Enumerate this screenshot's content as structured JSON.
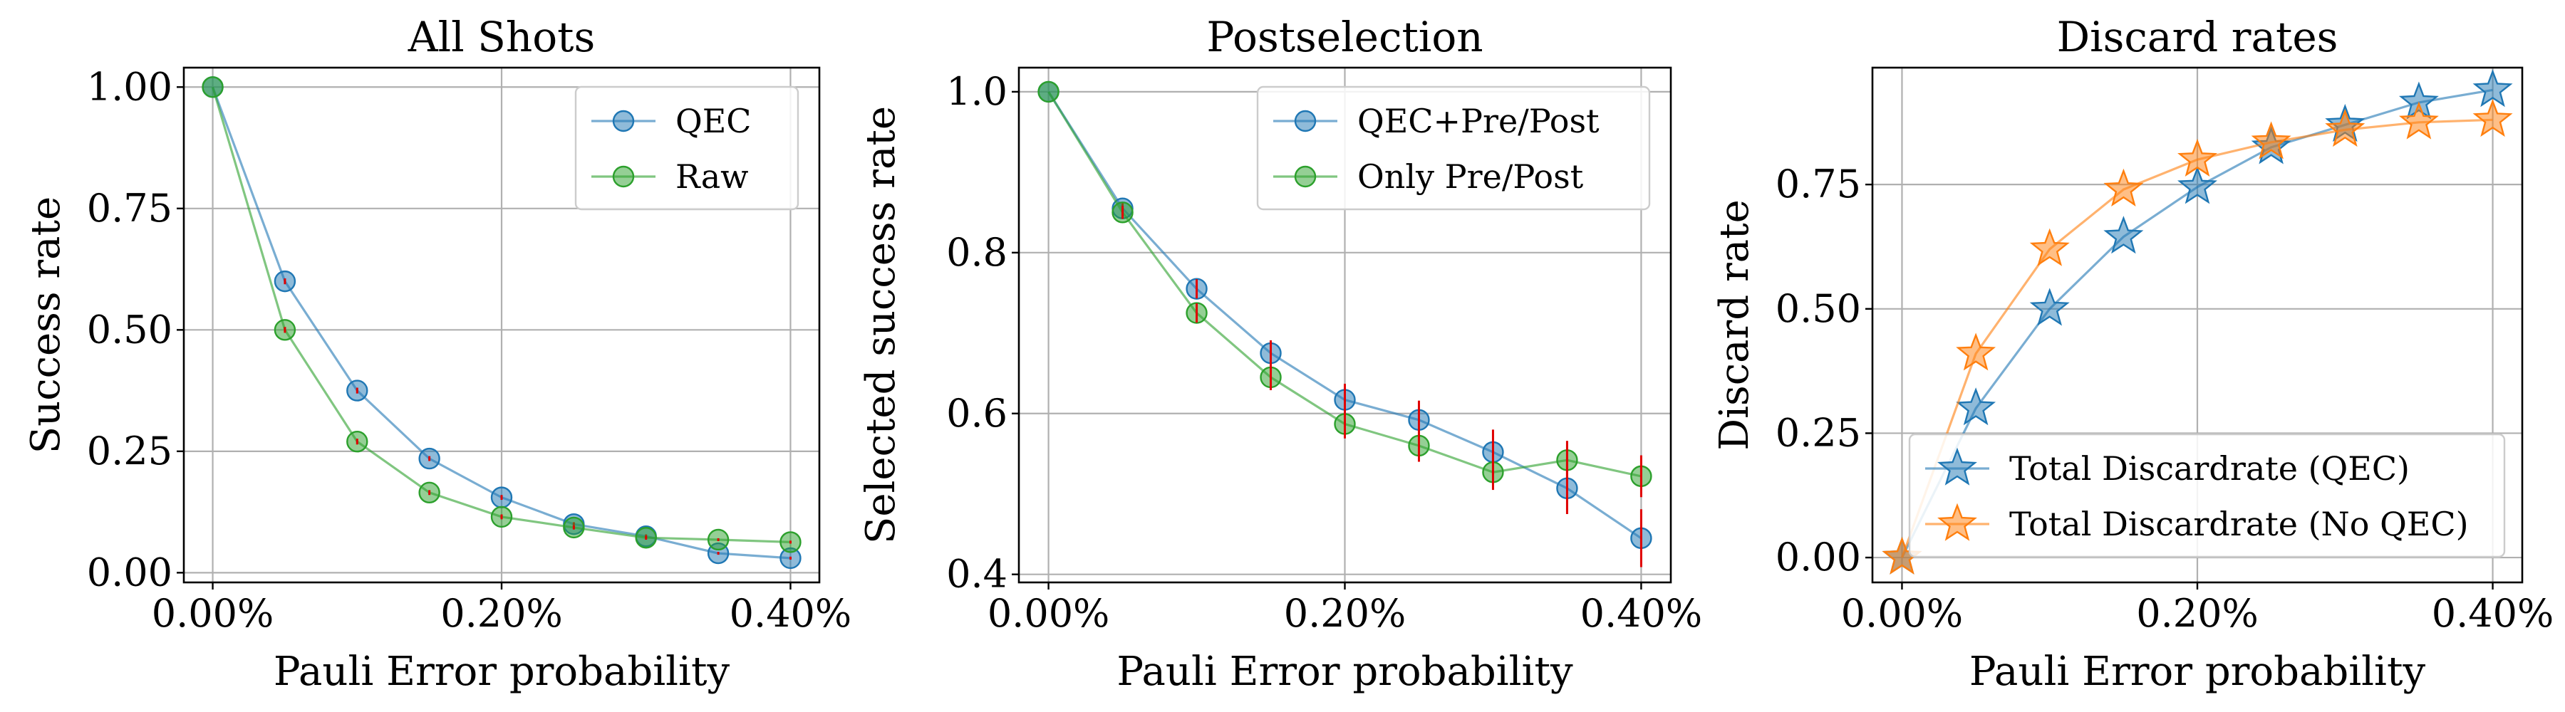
{
  "colors": {
    "blue": "#1f77b4",
    "green": "#2ca02c",
    "orange": "#ff7f0e",
    "errorbar": "#e00000",
    "grid": "#b0b0b0"
  },
  "chart_data": [
    {
      "type": "line",
      "title": "All Shots",
      "xlabel": "Pauli Error probability",
      "ylabel": "Success rate",
      "x": [
        0.0,
        0.05,
        0.1,
        0.15,
        0.2,
        0.25,
        0.3,
        0.35,
        0.4
      ],
      "xlim": [
        -0.02,
        0.42
      ],
      "ylim": [
        -0.02,
        1.04
      ],
      "xticks": [
        0.0,
        0.2,
        0.4
      ],
      "xtick_labels": [
        "0.00%",
        "0.20%",
        "0.40%"
      ],
      "yticks": [
        0.0,
        0.25,
        0.5,
        0.75,
        1.0
      ],
      "ytick_labels": [
        "0.00",
        "0.25",
        "0.50",
        "0.75",
        "1.00"
      ],
      "grid": true,
      "legend_position": "top-right",
      "marker": "circle",
      "series": [
        {
          "name": "QEC",
          "color": "#1f77b4",
          "values": [
            1.0,
            0.6,
            0.375,
            0.235,
            0.155,
            0.1,
            0.075,
            0.04,
            0.03
          ],
          "errors": [
            0,
            0.006,
            0.006,
            0.005,
            0.005,
            0.004,
            0.004,
            0.003,
            0.003
          ]
        },
        {
          "name": "Raw",
          "color": "#2ca02c",
          "values": [
            1.0,
            0.5,
            0.27,
            0.165,
            0.115,
            0.093,
            0.072,
            0.068,
            0.063
          ],
          "errors": [
            0,
            0.006,
            0.006,
            0.005,
            0.005,
            0.004,
            0.004,
            0.003,
            0.003
          ]
        }
      ]
    },
    {
      "type": "line",
      "title": "Postselection",
      "xlabel": "Pauli Error probability",
      "ylabel": "Selected success rate",
      "x": [
        0.0,
        0.05,
        0.1,
        0.15,
        0.2,
        0.25,
        0.3,
        0.35,
        0.4
      ],
      "xlim": [
        -0.02,
        0.42
      ],
      "ylim": [
        0.39,
        1.03
      ],
      "xticks": [
        0.0,
        0.2,
        0.4
      ],
      "xtick_labels": [
        "0.00%",
        "0.20%",
        "0.40%"
      ],
      "yticks": [
        0.4,
        0.6,
        0.8,
        1.0
      ],
      "ytick_labels": [
        "0.4",
        "0.6",
        "0.8",
        "1.0"
      ],
      "grid": true,
      "legend_position": "top-right",
      "marker": "circle",
      "series": [
        {
          "name": "QEC+Pre/Post",
          "color": "#1f77b4",
          "values": [
            1.0,
            0.855,
            0.755,
            0.675,
            0.617,
            0.592,
            0.552,
            0.507,
            0.445
          ],
          "errors": [
            0,
            0.008,
            0.012,
            0.016,
            0.02,
            0.024,
            0.028,
            0.032,
            0.036
          ]
        },
        {
          "name": "Only Pre/Post",
          "color": "#2ca02c",
          "values": [
            1.0,
            0.85,
            0.725,
            0.645,
            0.587,
            0.56,
            0.527,
            0.542,
            0.522
          ],
          "errors": [
            0,
            0.008,
            0.012,
            0.016,
            0.018,
            0.02,
            0.022,
            0.024,
            0.026
          ]
        }
      ]
    },
    {
      "type": "line",
      "title": "Discard rates",
      "xlabel": "Pauli Error probability",
      "ylabel": "Discard rate",
      "x": [
        0.0,
        0.05,
        0.1,
        0.15,
        0.2,
        0.25,
        0.3,
        0.35,
        0.4
      ],
      "xlim": [
        -0.02,
        0.42
      ],
      "ylim": [
        -0.05,
        0.985
      ],
      "xticks": [
        0.0,
        0.2,
        0.4
      ],
      "xtick_labels": [
        "0.00%",
        "0.20%",
        "0.40%"
      ],
      "yticks": [
        0.0,
        0.25,
        0.5,
        0.75
      ],
      "ytick_labels": [
        "0.00",
        "0.25",
        "0.50",
        "0.75"
      ],
      "grid": true,
      "legend_position": "bottom-left",
      "marker": "star",
      "series": [
        {
          "name": "Total Discardrate (QEC)",
          "color": "#1f77b4",
          "values": [
            0.0,
            0.3,
            0.5,
            0.645,
            0.745,
            0.825,
            0.87,
            0.915,
            0.94
          ]
        },
        {
          "name": "Total Discardrate (No QEC)",
          "color": "#ff7f0e",
          "values": [
            0.0,
            0.41,
            0.62,
            0.74,
            0.8,
            0.835,
            0.86,
            0.875,
            0.88
          ]
        }
      ]
    }
  ]
}
